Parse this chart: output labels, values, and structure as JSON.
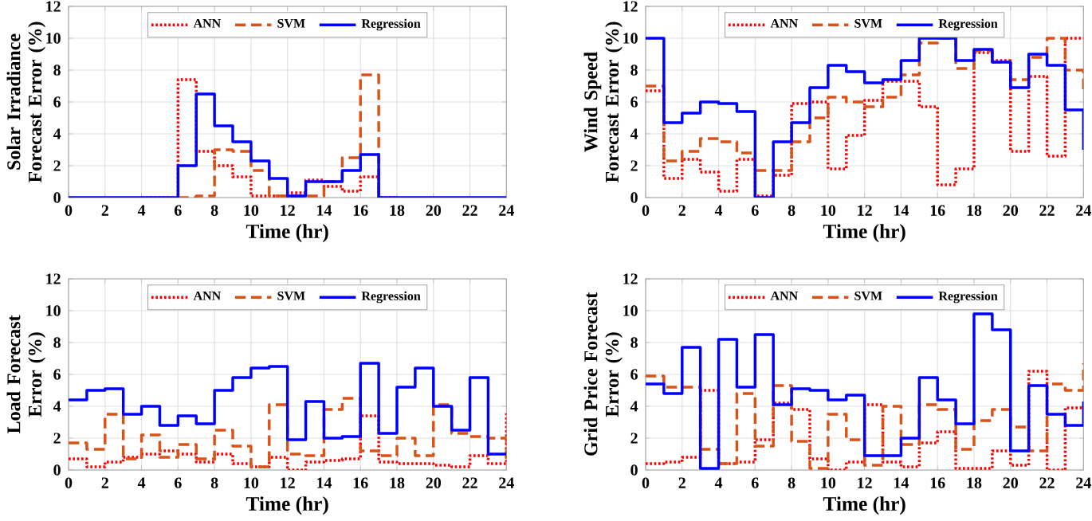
{
  "chart_data": [
    {
      "type": "step",
      "xlabel": "Time (hr)",
      "ylabel": "Solar Irradiance Forecast Error (%)",
      "x": [
        0,
        1,
        2,
        3,
        4,
        5,
        6,
        7,
        8,
        9,
        10,
        11,
        12,
        13,
        14,
        15,
        16,
        17,
        18,
        19,
        20,
        21,
        22,
        23,
        24
      ],
      "xlim": [
        0,
        24
      ],
      "ylim": [
        0,
        12
      ],
      "xticks": [
        0,
        2,
        4,
        6,
        8,
        10,
        12,
        14,
        16,
        18,
        20,
        22,
        24
      ],
      "yticks": [
        0,
        2,
        4,
        6,
        8,
        10,
        12
      ],
      "grid": true,
      "legend": "top",
      "series": [
        {
          "name": "ANN",
          "color": "#ff0000",
          "line_style": "dotted",
          "values": [
            null,
            null,
            null,
            null,
            0,
            0,
            7.4,
            2.9,
            2.0,
            1.3,
            0.1,
            0.1,
            0.3,
            1.1,
            0.7,
            0.4,
            1.3,
            0,
            0,
            null,
            null,
            null,
            null,
            null,
            null
          ]
        },
        {
          "name": "SVM",
          "color": "#d95319",
          "line_style": "dashed",
          "values": [
            null,
            null,
            null,
            null,
            null,
            null,
            0,
            0.1,
            3.0,
            2.9,
            1.7,
            0.1,
            0.1,
            0.1,
            1.0,
            2.5,
            7.7,
            0,
            null,
            null,
            null,
            null,
            null,
            null,
            null
          ]
        },
        {
          "name": "Regression",
          "color": "#0000ff",
          "line_style": "solid",
          "values": [
            0,
            0,
            0,
            0,
            0,
            0,
            2.0,
            6.5,
            4.5,
            3.5,
            2.3,
            1.2,
            0.1,
            1.0,
            1.0,
            1.7,
            2.7,
            0,
            0,
            0,
            0,
            0,
            0,
            0,
            0
          ]
        }
      ]
    },
    {
      "type": "step",
      "xlabel": "Time (hr)",
      "ylabel": "Wind Speed Forecast Error (%)",
      "x": [
        0,
        1,
        2,
        3,
        4,
        5,
        6,
        7,
        8,
        9,
        10,
        11,
        12,
        13,
        14,
        15,
        16,
        17,
        18,
        19,
        20,
        21,
        22,
        23,
        24
      ],
      "xlim": [
        0,
        24
      ],
      "ylim": [
        0,
        12
      ],
      "xticks": [
        0,
        2,
        4,
        6,
        8,
        10,
        12,
        14,
        16,
        18,
        20,
        22,
        24
      ],
      "yticks": [
        0,
        2,
        4,
        6,
        8,
        10,
        12
      ],
      "grid": true,
      "legend": "top",
      "series": [
        {
          "name": "ANN",
          "color": "#ff0000",
          "line_style": "dotted",
          "values": [
            6.7,
            1.2,
            2.4,
            1.6,
            0.4,
            2.4,
            0.1,
            1.4,
            5.9,
            6.0,
            1.8,
            3.9,
            6.1,
            7.3,
            7.3,
            5.7,
            0.8,
            1.8,
            9.1,
            8.6,
            2.9,
            7.6,
            2.6,
            10.0,
            10.0
          ]
        },
        {
          "name": "SVM",
          "color": "#d95319",
          "line_style": "dashed",
          "values": [
            7.0,
            2.3,
            2.9,
            3.7,
            3.5,
            2.8,
            1.7,
            1.7,
            3.5,
            5.0,
            6.3,
            6.0,
            5.7,
            6.3,
            7.7,
            9.7,
            10.0,
            8.1,
            9.2,
            8.5,
            7.4,
            8.8,
            10.0,
            8.0,
            6.5
          ]
        },
        {
          "name": "Regression",
          "color": "#0000ff",
          "line_style": "solid",
          "values": [
            10.0,
            4.7,
            5.3,
            6.0,
            5.9,
            5.4,
            0,
            3.5,
            4.7,
            6.9,
            8.3,
            7.9,
            7.2,
            7.4,
            8.6,
            10.0,
            10.0,
            8.6,
            9.3,
            8.5,
            6.9,
            9.0,
            8.3,
            5.5,
            3.0
          ]
        }
      ]
    },
    {
      "type": "step",
      "xlabel": "Time (hr)",
      "ylabel": "Load Forecast Error (%)",
      "x": [
        0,
        1,
        2,
        3,
        4,
        5,
        6,
        7,
        8,
        9,
        10,
        11,
        12,
        13,
        14,
        15,
        16,
        17,
        18,
        19,
        20,
        21,
        22,
        23,
        24
      ],
      "xlim": [
        0,
        24
      ],
      "ylim": [
        0,
        12
      ],
      "xticks": [
        0,
        2,
        4,
        6,
        8,
        10,
        12,
        14,
        16,
        18,
        20,
        22,
        24
      ],
      "yticks": [
        0,
        2,
        4,
        6,
        8,
        10,
        12
      ],
      "grid": true,
      "legend": "top",
      "series": [
        {
          "name": "ANN",
          "color": "#ff0000",
          "line_style": "dotted",
          "values": [
            0.7,
            0.2,
            0.5,
            0.8,
            1.0,
            1.2,
            1.0,
            0.5,
            1.0,
            0.4,
            0.2,
            0.8,
            0.0,
            0.5,
            0.6,
            0.7,
            3.4,
            0.5,
            0.4,
            0.4,
            0.3,
            0.2,
            0.9,
            0.4,
            3.7
          ]
        },
        {
          "name": "SVM",
          "color": "#d95319",
          "line_style": "dashed",
          "values": [
            1.7,
            1.3,
            3.5,
            0.7,
            2.2,
            0.8,
            1.6,
            0.7,
            2.5,
            1.5,
            0.2,
            4.1,
            1.0,
            0.9,
            3.8,
            4.5,
            1.2,
            0.9,
            2.0,
            0.9,
            4.1,
            2.3,
            2.1,
            2.0,
            0.5
          ]
        },
        {
          "name": "Regression",
          "color": "#0000ff",
          "line_style": "solid",
          "values": [
            4.4,
            5.0,
            5.1,
            3.5,
            4.0,
            2.8,
            3.4,
            2.9,
            5.0,
            5.8,
            6.4,
            6.5,
            1.9,
            4.3,
            2.0,
            2.1,
            6.7,
            2.3,
            5.2,
            6.4,
            4.0,
            2.5,
            5.8,
            1.0,
            1.0
          ]
        }
      ]
    },
    {
      "type": "step",
      "xlabel": "Time (hr)",
      "ylabel": "Grid Price Forecast Error (%)",
      "x": [
        0,
        1,
        2,
        3,
        4,
        5,
        6,
        7,
        8,
        9,
        10,
        11,
        12,
        13,
        14,
        15,
        16,
        17,
        18,
        19,
        20,
        21,
        22,
        23,
        24
      ],
      "xlim": [
        0,
        24
      ],
      "ylim": [
        0,
        12
      ],
      "xticks": [
        0,
        2,
        4,
        6,
        8,
        10,
        12,
        14,
        16,
        18,
        20,
        22,
        24
      ],
      "yticks": [
        0,
        2,
        4,
        6,
        8,
        10,
        12
      ],
      "grid": true,
      "legend": "top",
      "series": [
        {
          "name": "ANN",
          "color": "#ff0000",
          "line_style": "dotted",
          "values": [
            0.4,
            0.5,
            0.8,
            5.0,
            0.4,
            0.5,
            1.9,
            4.2,
            3.8,
            0.7,
            0.0,
            0.5,
            4.1,
            0.5,
            0.2,
            1.7,
            2.4,
            0.1,
            0.1,
            1.2,
            0.3,
            6.2,
            0.0,
            3.9,
            4.0
          ]
        },
        {
          "name": "SVM",
          "color": "#d95319",
          "line_style": "dashed",
          "values": [
            5.9,
            5.2,
            5.2,
            1.3,
            0.4,
            4.8,
            1.5,
            5.3,
            1.8,
            0.1,
            3.5,
            1.9,
            0.3,
            4.0,
            1.6,
            4.1,
            3.8,
            1.3,
            3.1,
            3.8,
            2.7,
            1.2,
            5.4,
            5.0,
            6.7
          ]
        },
        {
          "name": "Regression",
          "color": "#0000ff",
          "line_style": "solid",
          "values": [
            5.4,
            4.8,
            7.7,
            0.1,
            8.2,
            5.2,
            8.5,
            4.1,
            5.1,
            5.0,
            4.4,
            4.7,
            0.9,
            0.9,
            2.0,
            5.8,
            4.4,
            2.9,
            9.8,
            8.8,
            1.2,
            5.3,
            3.5,
            2.8,
            4.3
          ]
        }
      ]
    }
  ]
}
